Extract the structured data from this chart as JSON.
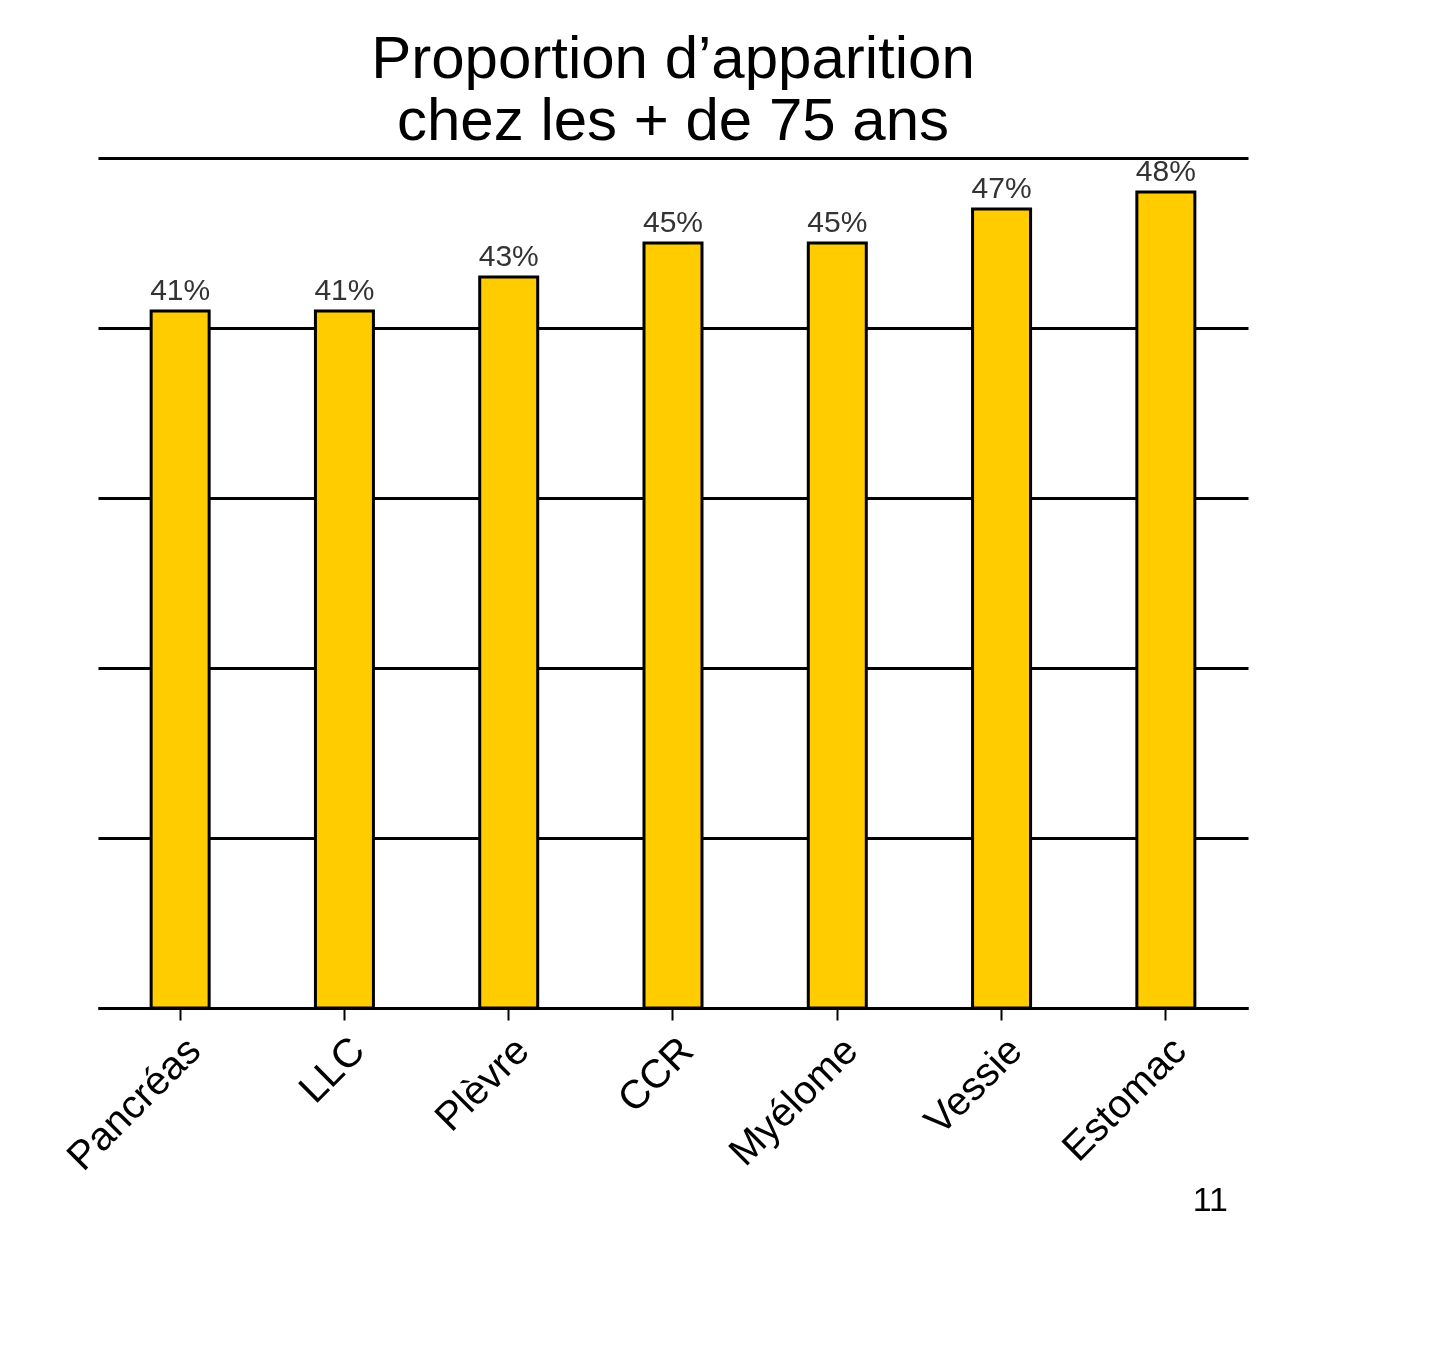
{
  "chart_data": {
    "type": "bar",
    "title": [
      "Proportion d’apparition",
      "chez les + de 75 ans"
    ],
    "categories": [
      "Pancréas",
      "LLC",
      "Plèvre",
      "CCR",
      "Myélome",
      "Vessie",
      "Estomac"
    ],
    "values": [
      41,
      41,
      43,
      45,
      45,
      47,
      48
    ],
    "value_labels": [
      "41%",
      "41%",
      "43%",
      "45%",
      "45%",
      "47%",
      "48%"
    ],
    "color": "#ffcc00",
    "ylim": [
      0,
      50
    ],
    "yticks": [
      {
        "value": 0,
        "label": null
      },
      {
        "value": 10,
        "label": null
      },
      {
        "value": 20,
        "label": null
      },
      {
        "value": 30,
        "label": null
      },
      {
        "value": 40,
        "label": null
      },
      {
        "value": 50,
        "label": null
      }
    ],
    "grid": "y",
    "tick_labels": "x",
    "annotations": [
      "11"
    ]
  }
}
